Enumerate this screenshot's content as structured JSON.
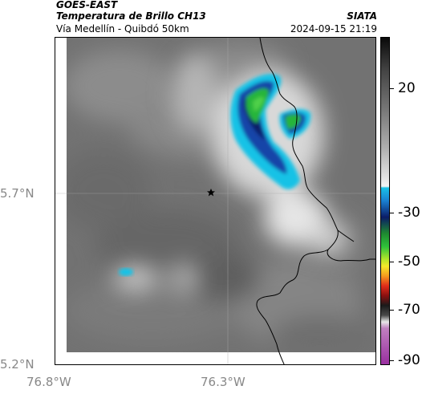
{
  "header": {
    "satellite": "GOES-EAST",
    "product": "Temperatura de Brillo CH13",
    "route": "Vía Medellín - Quibdó 50km",
    "organization": "SIATA",
    "datetime": "2024-09-15 21:19"
  },
  "axes": {
    "lat_labels": [
      "5.7°N",
      "5.2°N"
    ],
    "lon_labels": [
      "76.8°W",
      "76.3°W"
    ]
  },
  "colorbar": {
    "labels": [
      "20",
      "-30",
      "-50",
      "-70",
      "-90"
    ]
  },
  "map": {
    "marker": "star",
    "colors": {
      "cloud_gray": "#7a7a7a",
      "cold_cyan": "#19c2e6",
      "cold_blue": "#1245a8",
      "cold_navy": "#0b1c66",
      "cold_green": "#28b53a",
      "border_line": "#000000"
    }
  }
}
